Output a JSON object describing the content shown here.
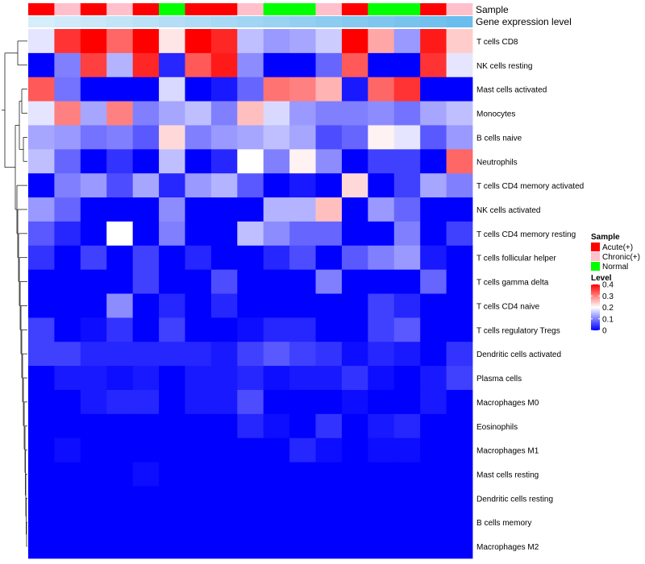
{
  "chart_data": {
    "type": "heatmap",
    "title": "",
    "annotation_labels": [
      "Sample",
      "Gene expression level"
    ],
    "sample_groups": [
      "Acute",
      "Chronic",
      "Acute",
      "Chronic",
      "Acute",
      "Normal",
      "Acute",
      "Acute",
      "Chronic",
      "Normal",
      "Normal",
      "Chronic",
      "Acute",
      "Normal",
      "Normal",
      "Acute",
      "Chronic"
    ],
    "gene_expression_level": [
      0.05,
      0.1,
      0.15,
      0.2,
      0.25,
      0.3,
      0.35,
      0.4,
      0.45,
      0.5,
      0.55,
      0.6,
      0.65,
      0.7,
      0.75,
      0.8,
      0.85
    ],
    "rows": [
      "T cells CD8",
      "NK cells resting",
      "Mast cells activated",
      "Monocytes",
      "B cells naive",
      "Neutrophils",
      "T cells CD4 memory activated",
      "NK cells activated",
      "T cells CD4 memory resting",
      "T cells follicular helper",
      "T cells gamma delta",
      "T cells CD4 naive",
      "T cells regulatory  Tregs",
      "Dendritic cells activated",
      "Plasma cells",
      "Macrophages M0",
      "Eosinophils",
      "Macrophages M1",
      "Mast cells resting",
      "Dendritic cells resting",
      "B cells memory",
      "Macrophages M2"
    ],
    "values": [
      [
        0.18,
        0.36,
        0.4,
        0.32,
        0.4,
        0.22,
        0.4,
        0.37,
        0.15,
        0.12,
        0.13,
        0.16,
        0.4,
        0.27,
        0.12,
        0.38,
        0.24
      ],
      [
        0.0,
        0.1,
        0.35,
        0.14,
        0.37,
        0.03,
        0.33,
        0.38,
        0.11,
        0.0,
        0.0,
        0.08,
        0.33,
        0.0,
        0.0,
        0.36,
        0.18
      ],
      [
        0.33,
        0.09,
        0.0,
        0.0,
        0.0,
        0.17,
        0.0,
        0.02,
        0.08,
        0.31,
        0.3,
        0.26,
        0.02,
        0.32,
        0.36,
        0.0,
        0.0
      ],
      [
        0.18,
        0.3,
        0.13,
        0.3,
        0.1,
        0.13,
        0.15,
        0.1,
        0.25,
        0.17,
        0.12,
        0.1,
        0.1,
        0.11,
        0.09,
        0.13,
        0.15
      ],
      [
        0.13,
        0.12,
        0.09,
        0.1,
        0.07,
        0.23,
        0.1,
        0.12,
        0.13,
        0.15,
        0.13,
        0.06,
        0.08,
        0.21,
        0.18,
        0.07,
        0.12
      ],
      [
        0.15,
        0.08,
        0.0,
        0.04,
        0.0,
        0.15,
        0.0,
        0.03,
        0.2,
        0.1,
        0.21,
        0.11,
        0.0,
        0.05,
        0.05,
        0.0,
        0.32
      ],
      [
        0.0,
        0.1,
        0.12,
        0.06,
        0.13,
        0.03,
        0.12,
        0.14,
        0.07,
        0.0,
        0.02,
        0.0,
        0.23,
        0.0,
        0.05,
        0.13,
        0.1
      ],
      [
        0.12,
        0.08,
        0.0,
        0.0,
        0.0,
        0.11,
        0.0,
        0.0,
        0.0,
        0.14,
        0.14,
        0.25,
        0.0,
        0.12,
        0.08,
        0.0,
        0.0
      ],
      [
        0.07,
        0.03,
        0.0,
        0.2,
        0.0,
        0.1,
        0.0,
        0.0,
        0.15,
        0.11,
        0.08,
        0.08,
        0.0,
        0.0,
        0.1,
        0.0,
        0.05
      ],
      [
        0.04,
        0.0,
        0.05,
        0.0,
        0.05,
        0.0,
        0.03,
        0.0,
        0.0,
        0.03,
        0.06,
        0.0,
        0.07,
        0.1,
        0.12,
        0.02,
        0.0
      ],
      [
        0.0,
        0.0,
        0.0,
        0.0,
        0.05,
        0.0,
        0.0,
        0.06,
        0.0,
        0.0,
        0.0,
        0.1,
        0.0,
        0.0,
        0.0,
        0.08,
        0.0
      ],
      [
        0.0,
        0.0,
        0.0,
        0.11,
        0.0,
        0.03,
        0.0,
        0.03,
        0.0,
        0.0,
        0.0,
        0.0,
        0.0,
        0.05,
        0.03,
        0.0,
        0.0
      ],
      [
        0.05,
        0.0,
        0.01,
        0.04,
        0.0,
        0.05,
        0.0,
        0.0,
        0.01,
        0.03,
        0.03,
        0.0,
        0.0,
        0.05,
        0.07,
        0.0,
        0.0
      ],
      [
        0.05,
        0.05,
        0.03,
        0.03,
        0.03,
        0.03,
        0.03,
        0.02,
        0.05,
        0.07,
        0.05,
        0.04,
        0.01,
        0.03,
        0.02,
        0.0,
        0.04
      ],
      [
        0.0,
        0.02,
        0.02,
        0.01,
        0.02,
        0.0,
        0.02,
        0.02,
        0.03,
        0.01,
        0.02,
        0.02,
        0.04,
        0.01,
        0.0,
        0.02,
        0.05
      ],
      [
        0.0,
        0.0,
        0.02,
        0.03,
        0.03,
        0.0,
        0.02,
        0.02,
        0.06,
        0.0,
        0.0,
        0.0,
        0.01,
        0.0,
        0.0,
        0.02,
        0.0
      ],
      [
        0.0,
        0.0,
        0.0,
        0.0,
        0.0,
        0.0,
        0.0,
        0.0,
        0.03,
        0.01,
        0.0,
        0.04,
        0.0,
        0.02,
        0.03,
        0.0,
        0.0
      ],
      [
        0.0,
        0.01,
        0.0,
        0.0,
        0.0,
        0.0,
        0.0,
        0.0,
        0.0,
        0.0,
        0.03,
        0.01,
        0.0,
        0.01,
        0.01,
        0.0,
        0.0
      ],
      [
        0.0,
        0.0,
        0.0,
        0.0,
        0.01,
        0.0,
        0.0,
        0.0,
        0.0,
        0.0,
        0.0,
        0.0,
        0.0,
        0.0,
        0.0,
        0.0,
        0.0
      ],
      [
        0.0,
        0.0,
        0.0,
        0.0,
        0.0,
        0.0,
        0.0,
        0.0,
        0.0,
        0.0,
        0.0,
        0.0,
        0.0,
        0.0,
        0.0,
        0.0,
        0.0
      ],
      [
        0.0,
        0.0,
        0.0,
        0.0,
        0.0,
        0.0,
        0.0,
        0.0,
        0.0,
        0.0,
        0.0,
        0.0,
        0.0,
        0.0,
        0.0,
        0.0,
        0.0
      ],
      [
        0.0,
        0.0,
        0.0,
        0.0,
        0.0,
        0.0,
        0.0,
        0.0,
        0.0,
        0.0,
        0.0,
        0.0,
        0.0,
        0.0,
        0.0,
        0.0,
        0.0
      ]
    ],
    "color_scale": {
      "low": "#0000ff",
      "mid": "#ffffff",
      "high": "#ff0000",
      "min": 0,
      "mid_value": 0.2,
      "max": 0.4
    },
    "gene_expression_colors": {
      "low": "#ddf0fb",
      "high": "#56b4e9"
    },
    "legends": {
      "sample": {
        "title": "Sample",
        "items": [
          {
            "key": "Acute",
            "label": "Acute(+)",
            "color": "#ff0000"
          },
          {
            "key": "Chronic",
            "label": "Chronic(+)",
            "color": "#ffc0cb"
          },
          {
            "key": "Normal",
            "label": "Normal",
            "color": "#00ff00"
          }
        ]
      },
      "level": {
        "title": "Level",
        "ticks": [
          {
            "value": 0.4,
            "label": "0.4"
          },
          {
            "value": 0.3,
            "label": "0.3"
          },
          {
            "value": 0.2,
            "label": "0.2"
          },
          {
            "value": 0.1,
            "label": "0.1"
          },
          {
            "value": 0,
            "label": "0"
          }
        ]
      }
    }
  }
}
